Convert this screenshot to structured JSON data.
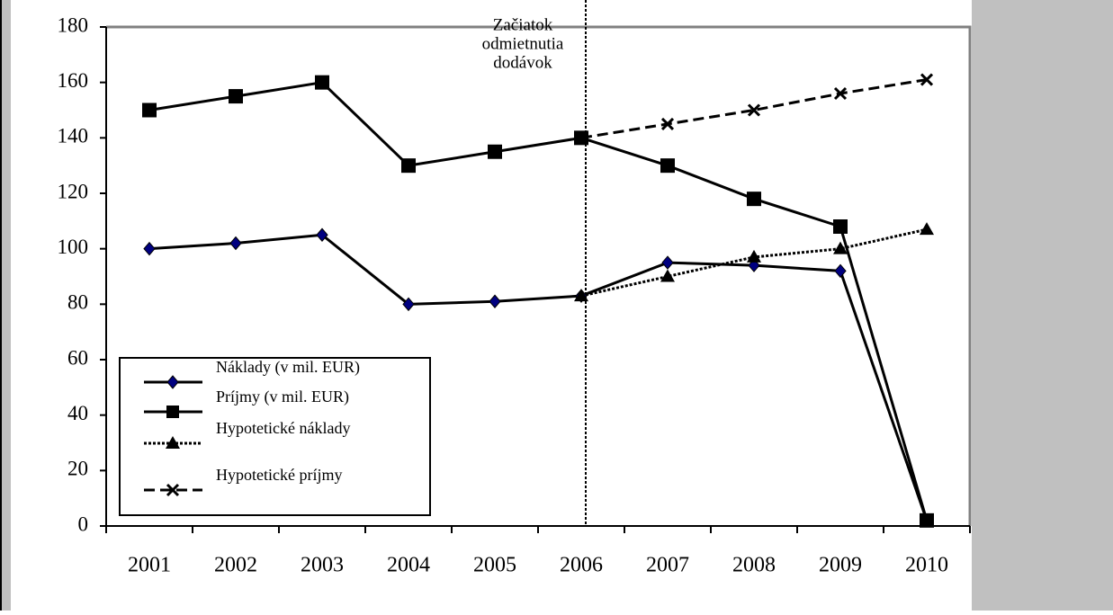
{
  "chart_data": {
    "type": "line",
    "categories": [
      "2001",
      "2002",
      "2003",
      "2004",
      "2005",
      "2006",
      "2007",
      "2008",
      "2009",
      "2010"
    ],
    "series": [
      {
        "name": "Náklady (v mil. EUR)",
        "color": "#000000",
        "marker": "diamond",
        "marker_color": "#000080",
        "dash": "solid",
        "values": [
          100,
          102,
          105,
          80,
          81,
          83,
          95,
          94,
          92,
          2
        ]
      },
      {
        "name": "Príjmy (v mil. EUR)",
        "color": "#000000",
        "marker": "square",
        "marker_color": "#000000",
        "dash": "solid",
        "values": [
          150,
          155,
          160,
          130,
          135,
          140,
          130,
          118,
          108,
          2
        ]
      },
      {
        "name": "Hypotetické náklady",
        "color": "#000000",
        "marker": "triangle",
        "marker_color": "#000000",
        "dash": "dotted",
        "values": [
          null,
          null,
          null,
          null,
          null,
          83,
          90,
          97,
          100,
          107
        ]
      },
      {
        "name": "Hypotetické príjmy",
        "color": "#000000",
        "marker": "x",
        "marker_color": "#000000",
        "dash": "dashed",
        "values": [
          null,
          null,
          null,
          null,
          null,
          140,
          145,
          150,
          156,
          161
        ]
      }
    ],
    "annotation": {
      "category": "2006",
      "lines": [
        "Začiatok",
        "odmietnutia",
        "dodávok"
      ]
    },
    "ylim": [
      0,
      180
    ],
    "yticks": [
      0,
      20,
      40,
      60,
      80,
      100,
      120,
      140,
      160,
      180
    ],
    "grid": false,
    "legend": "lower left"
  }
}
